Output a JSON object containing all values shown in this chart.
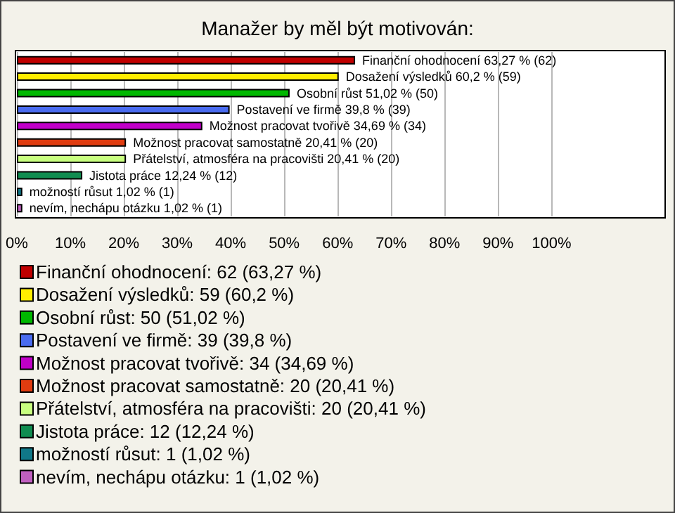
{
  "chart_data": {
    "type": "bar",
    "orientation": "horizontal",
    "stacked": true,
    "title": "Manažer by měl být motivován:",
    "categories": [
      null,
      null,
      null,
      null,
      null,
      null,
      null,
      null,
      null,
      null
    ],
    "series": [
      {
        "name": "Finanční ohodnocení: 62 (63,27 %)",
        "color": "#c00000",
        "values": [
          63.27,
          null,
          null,
          null,
          null,
          null,
          null,
          null,
          null,
          null
        ],
        "value_labels": [
          "Finanční ohodnocení 63,27 % (62)",
          null,
          null,
          null,
          null,
          null,
          null,
          null,
          null,
          null
        ]
      },
      {
        "name": "Dosažení výsledků: 59 (60,2 %)",
        "color": "#ffee00",
        "values": [
          null,
          60.2,
          null,
          null,
          null,
          null,
          null,
          null,
          null,
          null
        ],
        "value_labels": [
          null,
          "Dosažení výsledků 60,2 % (59)",
          null,
          null,
          null,
          null,
          null,
          null,
          null,
          null
        ]
      },
      {
        "name": "Osobní růst: 50 (51,02 %)",
        "color": "#00b800",
        "values": [
          null,
          null,
          51.02,
          null,
          null,
          null,
          null,
          null,
          null,
          null
        ],
        "value_labels": [
          null,
          null,
          "Osobní růst 51,02 % (50)",
          null,
          null,
          null,
          null,
          null,
          null,
          null
        ]
      },
      {
        "name": "Postavení ve firmě: 39 (39,8 %)",
        "color": "#4a6cf0",
        "values": [
          null,
          null,
          null,
          39.8,
          null,
          null,
          null,
          null,
          null,
          null
        ],
        "value_labels": [
          null,
          null,
          null,
          "Postavení ve firmě 39,8 % (39)",
          null,
          null,
          null,
          null,
          null,
          null
        ]
      },
      {
        "name": "Možnost pracovat tvořivě: 34 (34,69 %)",
        "color": "#c000c8",
        "values": [
          null,
          null,
          null,
          null,
          34.69,
          null,
          null,
          null,
          null,
          null
        ],
        "value_labels": [
          null,
          null,
          null,
          null,
          "Možnost pracovat tvořivě 34,69 % (34)",
          null,
          null,
          null,
          null,
          null
        ]
      },
      {
        "name": "Možnost pracovat samostatně: 20 (20,41 %)",
        "color": "#e03c10",
        "values": [
          null,
          null,
          null,
          null,
          null,
          20.41,
          null,
          null,
          null,
          null
        ],
        "value_labels": [
          null,
          null,
          null,
          null,
          null,
          "Možnost pracovat samostatně 20,41 % (20)",
          null,
          null,
          null,
          null
        ]
      },
      {
        "name": "Přátelství, atmosféra na pracovišti: 20 (20,41 %)",
        "color": "#c8ff80",
        "values": [
          null,
          null,
          null,
          null,
          null,
          null,
          20.41,
          null,
          null,
          null
        ],
        "value_labels": [
          null,
          null,
          null,
          null,
          null,
          null,
          "Přátelství, atmosféra na pracovišti 20,41 % (20)",
          null,
          null,
          null
        ]
      },
      {
        "name": "Jistota práce: 12 (12,24 %)",
        "color": "#108c50",
        "values": [
          null,
          null,
          null,
          null,
          null,
          null,
          null,
          12.24,
          null,
          null
        ],
        "value_labels": [
          null,
          null,
          null,
          null,
          null,
          null,
          null,
          "Jistota práce 12,24 % (12)",
          null,
          null
        ]
      },
      {
        "name": "možností růsut: 1 (1,02 %)",
        "color": "#107888",
        "values": [
          null,
          null,
          null,
          null,
          null,
          null,
          null,
          null,
          1.02,
          null
        ],
        "value_labels": [
          null,
          null,
          null,
          null,
          null,
          null,
          null,
          null,
          "možností růsut 1,02 % (1)",
          null
        ]
      },
      {
        "name": "nevím, nechápu otázku: 1 (1,02 %)",
        "color": "#c060c0",
        "values": [
          null,
          null,
          null,
          null,
          null,
          null,
          null,
          null,
          null,
          1.02
        ],
        "value_labels": [
          null,
          null,
          null,
          null,
          null,
          null,
          null,
          null,
          null,
          "nevím, nechápu otázku 1,02 % (1)"
        ]
      }
    ],
    "xlim": [
      0,
      121
    ],
    "xticks": [
      {
        "value": 0,
        "label": "0%"
      },
      {
        "value": 10,
        "label": "10%"
      },
      {
        "value": 20,
        "label": "20%"
      },
      {
        "value": 30,
        "label": "30%"
      },
      {
        "value": 40,
        "label": "40%"
      },
      {
        "value": 50,
        "label": "50%"
      },
      {
        "value": 60,
        "label": "60%"
      },
      {
        "value": 70,
        "label": "70%"
      },
      {
        "value": 80,
        "label": "80%"
      },
      {
        "value": 90,
        "label": "90%"
      },
      {
        "value": 100,
        "label": "100%"
      }
    ],
    "tick_labels": "x",
    "grid": "x",
    "legend": "bottom"
  }
}
